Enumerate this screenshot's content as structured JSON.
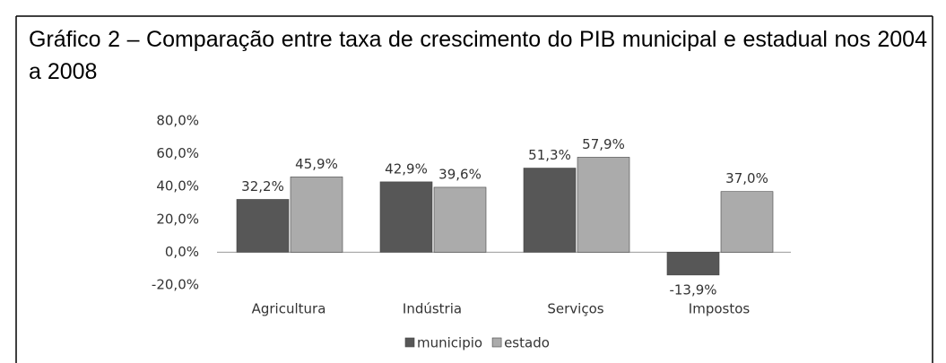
{
  "chart_data": {
    "type": "bar",
    "title": "Gráfico 2 – Comparação entre taxa de crescimento do PIB municipal e estadual nos 2004 a 2008",
    "categories": [
      "Agricultura",
      "Indústria",
      "Serviços",
      "Impostos"
    ],
    "series": [
      {
        "name": "municipio",
        "color": "#575757",
        "values": [
          32.2,
          42.9,
          51.3,
          -13.9
        ],
        "value_labels": [
          "32,2%",
          "42,9%",
          "51,3%",
          "-13,9%"
        ]
      },
      {
        "name": "estado",
        "color": "#ababab",
        "values": [
          45.9,
          39.6,
          57.9,
          37.0
        ],
        "value_labels": [
          "45,9%",
          "39,6%",
          "57,9%",
          "37,0%"
        ]
      }
    ],
    "ylim": [
      -20,
      80
    ],
    "yticks": [
      {
        "value": -20,
        "label": "-20,0%"
      },
      {
        "value": 0,
        "label": "0,0%"
      },
      {
        "value": 20,
        "label": "20,0%"
      },
      {
        "value": 40,
        "label": "40,0%"
      },
      {
        "value": 60,
        "label": "60,0%"
      },
      {
        "value": 80,
        "label": "80,0%"
      }
    ],
    "grid": false,
    "legend": "bottom"
  }
}
